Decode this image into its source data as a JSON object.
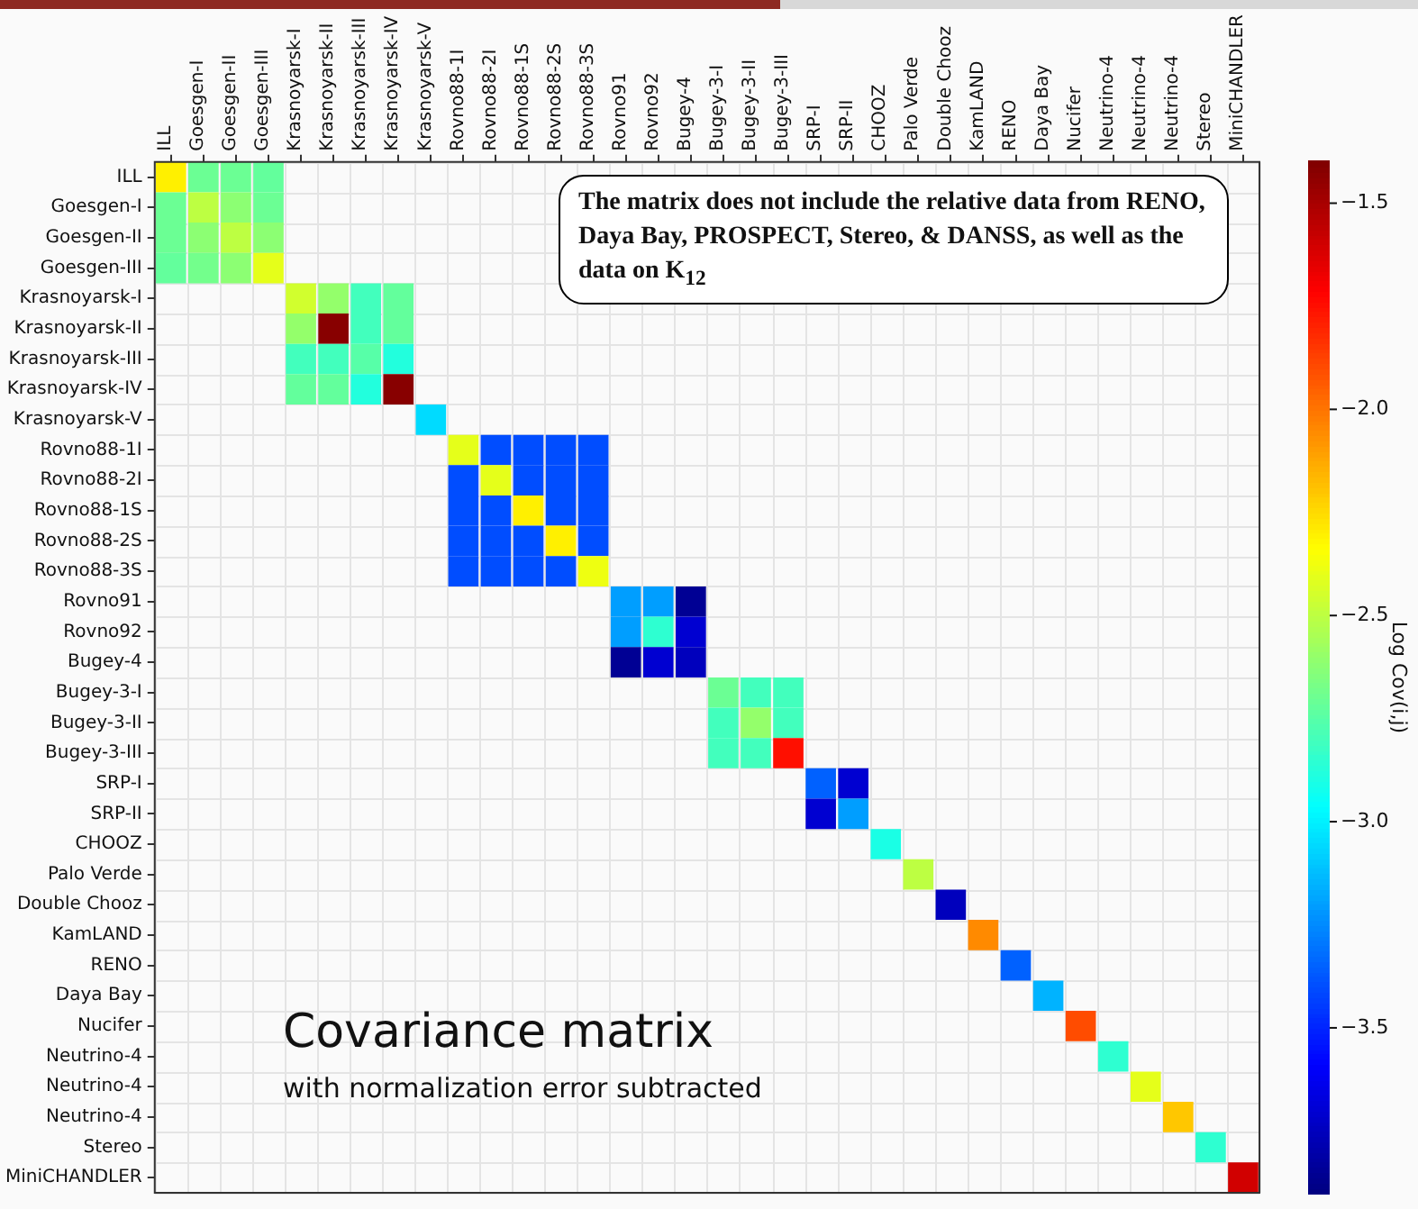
{
  "chart_data": {
    "type": "heatmap",
    "title": "Covariance matrix",
    "subtitle": "with normalization error subtracted",
    "categories": [
      "ILL",
      "Goesgen-I",
      "Goesgen-II",
      "Goesgen-III",
      "Krasnoyarsk-I",
      "Krasnoyarsk-II",
      "Krasnoyarsk-III",
      "Krasnoyarsk-IV",
      "Krasnoyarsk-V",
      "Rovno88-1I",
      "Rovno88-2I",
      "Rovno88-1S",
      "Rovno88-2S",
      "Rovno88-3S",
      "Rovno91",
      "Rovno92",
      "Bugey-4",
      "Bugey-3-I",
      "Bugey-3-II",
      "Bugey-3-III",
      "SRP-I",
      "SRP-II",
      "CHOOZ",
      "Palo Verde",
      "Double Chooz",
      "KamLAND",
      "RENO",
      "Daya Bay",
      "Nucifer",
      "Neutrino-4",
      "Neutrino-4",
      "Neutrino-4",
      "Stereo",
      "MiniCHANDLER"
    ],
    "y_categories": [
      "ILL",
      "Goesgen-I",
      "Goesgen-II",
      "Goesgen-III",
      "Krasnoyarsk-I",
      "Krasnoyarsk-II",
      "Krasnoyarsk-III",
      "Krasnoyarsk-IV",
      "Krasnoyarsk-V",
      "Rovno88-1I",
      "Rovno88-2I",
      "Rovno88-1S",
      "Rovno88-2S",
      "Rovno88-3S",
      "Rovno91",
      "Rovno92",
      "Bugey-4",
      "Bugey-3-I",
      "Bugey-3-II",
      "Bugey-3-III",
      "SRP-I",
      "SRP-II",
      "CHOOZ",
      "Palo Verde",
      "Double Chooz",
      "KamLAND",
      "RENO",
      "Daya Bay",
      "Nucifer",
      "Neutrino-4",
      "Neutrino-4",
      "Neutrino-4",
      "Stereo",
      "MiniCHANDLER"
    ],
    "cells": [
      [
        -2.3,
        -2.7,
        -2.7,
        -2.72,
        null,
        null,
        null,
        null,
        null,
        null,
        null,
        null,
        null,
        null,
        null,
        null,
        null,
        null,
        null,
        null,
        null,
        null,
        null,
        null,
        null,
        null,
        null,
        null,
        null,
        null,
        null,
        null,
        null,
        null
      ],
      [
        -2.7,
        -2.5,
        -2.62,
        -2.7,
        null,
        null,
        null,
        null,
        null,
        null,
        null,
        null,
        null,
        null,
        null,
        null,
        null,
        null,
        null,
        null,
        null,
        null,
        null,
        null,
        null,
        null,
        null,
        null,
        null,
        null,
        null,
        null,
        null,
        null
      ],
      [
        -2.7,
        -2.62,
        -2.5,
        -2.62,
        null,
        null,
        null,
        null,
        null,
        null,
        null,
        null,
        null,
        null,
        null,
        null,
        null,
        null,
        null,
        null,
        null,
        null,
        null,
        null,
        null,
        null,
        null,
        null,
        null,
        null,
        null,
        null,
        null,
        null
      ],
      [
        -2.72,
        -2.68,
        -2.62,
        -2.4,
        null,
        null,
        null,
        null,
        null,
        null,
        null,
        null,
        null,
        null,
        null,
        null,
        null,
        null,
        null,
        null,
        null,
        null,
        null,
        null,
        null,
        null,
        null,
        null,
        null,
        null,
        null,
        null,
        null,
        null
      ],
      [
        null,
        null,
        null,
        null,
        -2.45,
        -2.6,
        -2.8,
        -2.72,
        null,
        null,
        null,
        null,
        null,
        null,
        null,
        null,
        null,
        null,
        null,
        null,
        null,
        null,
        null,
        null,
        null,
        null,
        null,
        null,
        null,
        null,
        null,
        null,
        null,
        null
      ],
      [
        null,
        null,
        null,
        null,
        -2.6,
        -1.42,
        -2.8,
        -2.72,
        null,
        null,
        null,
        null,
        null,
        null,
        null,
        null,
        null,
        null,
        null,
        null,
        null,
        null,
        null,
        null,
        null,
        null,
        null,
        null,
        null,
        null,
        null,
        null,
        null,
        null
      ],
      [
        null,
        null,
        null,
        null,
        -2.8,
        -2.8,
        -2.75,
        -2.88,
        null,
        null,
        null,
        null,
        null,
        null,
        null,
        null,
        null,
        null,
        null,
        null,
        null,
        null,
        null,
        null,
        null,
        null,
        null,
        null,
        null,
        null,
        null,
        null,
        null,
        null
      ],
      [
        null,
        null,
        null,
        null,
        -2.72,
        -2.72,
        -2.88,
        -1.42,
        null,
        null,
        null,
        null,
        null,
        null,
        null,
        null,
        null,
        null,
        null,
        null,
        null,
        null,
        null,
        null,
        null,
        null,
        null,
        null,
        null,
        null,
        null,
        null,
        null,
        null
      ],
      [
        null,
        null,
        null,
        null,
        null,
        null,
        null,
        null,
        -3.05,
        null,
        null,
        null,
        null,
        null,
        null,
        null,
        null,
        null,
        null,
        null,
        null,
        null,
        null,
        null,
        null,
        null,
        null,
        null,
        null,
        null,
        null,
        null,
        null,
        null
      ],
      [
        null,
        null,
        null,
        null,
        null,
        null,
        null,
        null,
        null,
        -2.4,
        -3.4,
        -3.4,
        -3.4,
        -3.4,
        null,
        null,
        null,
        null,
        null,
        null,
        null,
        null,
        null,
        null,
        null,
        null,
        null,
        null,
        null,
        null,
        null,
        null,
        null,
        null
      ],
      [
        null,
        null,
        null,
        null,
        null,
        null,
        null,
        null,
        null,
        -3.4,
        -2.4,
        -3.4,
        -3.4,
        -3.4,
        null,
        null,
        null,
        null,
        null,
        null,
        null,
        null,
        null,
        null,
        null,
        null,
        null,
        null,
        null,
        null,
        null,
        null,
        null,
        null
      ],
      [
        null,
        null,
        null,
        null,
        null,
        null,
        null,
        null,
        null,
        -3.4,
        -3.4,
        -2.3,
        -3.4,
        -3.4,
        null,
        null,
        null,
        null,
        null,
        null,
        null,
        null,
        null,
        null,
        null,
        null,
        null,
        null,
        null,
        null,
        null,
        null,
        null,
        null
      ],
      [
        null,
        null,
        null,
        null,
        null,
        null,
        null,
        null,
        null,
        -3.4,
        -3.4,
        -3.4,
        -2.3,
        -3.4,
        null,
        null,
        null,
        null,
        null,
        null,
        null,
        null,
        null,
        null,
        null,
        null,
        null,
        null,
        null,
        null,
        null,
        null,
        null,
        null
      ],
      [
        null,
        null,
        null,
        null,
        null,
        null,
        null,
        null,
        null,
        -3.4,
        -3.4,
        -3.4,
        -3.4,
        -2.38,
        null,
        null,
        null,
        null,
        null,
        null,
        null,
        null,
        null,
        null,
        null,
        null,
        null,
        null,
        null,
        null,
        null,
        null,
        null,
        null
      ],
      [
        null,
        null,
        null,
        null,
        null,
        null,
        null,
        null,
        null,
        null,
        null,
        null,
        null,
        null,
        -3.2,
        -3.2,
        -3.85,
        null,
        null,
        null,
        null,
        null,
        null,
        null,
        null,
        null,
        null,
        null,
        null,
        null,
        null,
        null,
        null,
        null
      ],
      [
        null,
        null,
        null,
        null,
        null,
        null,
        null,
        null,
        null,
        null,
        null,
        null,
        null,
        null,
        -3.2,
        -2.85,
        -3.7,
        null,
        null,
        null,
        null,
        null,
        null,
        null,
        null,
        null,
        null,
        null,
        null,
        null,
        null,
        null,
        null,
        null
      ],
      [
        null,
        null,
        null,
        null,
        null,
        null,
        null,
        null,
        null,
        null,
        null,
        null,
        null,
        null,
        -3.85,
        -3.7,
        -3.75,
        null,
        null,
        null,
        null,
        null,
        null,
        null,
        null,
        null,
        null,
        null,
        null,
        null,
        null,
        null,
        null,
        null
      ],
      [
        null,
        null,
        null,
        null,
        null,
        null,
        null,
        null,
        null,
        null,
        null,
        null,
        null,
        null,
        null,
        null,
        null,
        -2.7,
        -2.8,
        -2.8,
        null,
        null,
        null,
        null,
        null,
        null,
        null,
        null,
        null,
        null,
        null,
        null,
        null,
        null
      ],
      [
        null,
        null,
        null,
        null,
        null,
        null,
        null,
        null,
        null,
        null,
        null,
        null,
        null,
        null,
        null,
        null,
        null,
        -2.8,
        -2.6,
        -2.8,
        null,
        null,
        null,
        null,
        null,
        null,
        null,
        null,
        null,
        null,
        null,
        null,
        null,
        null
      ],
      [
        null,
        null,
        null,
        null,
        null,
        null,
        null,
        null,
        null,
        null,
        null,
        null,
        null,
        null,
        null,
        null,
        null,
        -2.8,
        -2.8,
        -1.75,
        null,
        null,
        null,
        null,
        null,
        null,
        null,
        null,
        null,
        null,
        null,
        null,
        null,
        null
      ],
      [
        null,
        null,
        null,
        null,
        null,
        null,
        null,
        null,
        null,
        null,
        null,
        null,
        null,
        null,
        null,
        null,
        null,
        null,
        null,
        null,
        -3.35,
        -3.7,
        null,
        null,
        null,
        null,
        null,
        null,
        null,
        null,
        null,
        null,
        null,
        null
      ],
      [
        null,
        null,
        null,
        null,
        null,
        null,
        null,
        null,
        null,
        null,
        null,
        null,
        null,
        null,
        null,
        null,
        null,
        null,
        null,
        null,
        -3.7,
        -3.2,
        null,
        null,
        null,
        null,
        null,
        null,
        null,
        null,
        null,
        null,
        null,
        null
      ],
      [
        null,
        null,
        null,
        null,
        null,
        null,
        null,
        null,
        null,
        null,
        null,
        null,
        null,
        null,
        null,
        null,
        null,
        null,
        null,
        null,
        null,
        null,
        -2.9,
        null,
        null,
        null,
        null,
        null,
        null,
        null,
        null,
        null,
        null,
        null
      ],
      [
        null,
        null,
        null,
        null,
        null,
        null,
        null,
        null,
        null,
        null,
        null,
        null,
        null,
        null,
        null,
        null,
        null,
        null,
        null,
        null,
        null,
        null,
        null,
        -2.5,
        null,
        null,
        null,
        null,
        null,
        null,
        null,
        null,
        null,
        null
      ],
      [
        null,
        null,
        null,
        null,
        null,
        null,
        null,
        null,
        null,
        null,
        null,
        null,
        null,
        null,
        null,
        null,
        null,
        null,
        null,
        null,
        null,
        null,
        null,
        null,
        -3.75,
        null,
        null,
        null,
        null,
        null,
        null,
        null,
        null,
        null
      ],
      [
        null,
        null,
        null,
        null,
        null,
        null,
        null,
        null,
        null,
        null,
        null,
        null,
        null,
        null,
        null,
        null,
        null,
        null,
        null,
        null,
        null,
        null,
        null,
        null,
        null,
        -2.05,
        null,
        null,
        null,
        null,
        null,
        null,
        null,
        null
      ],
      [
        null,
        null,
        null,
        null,
        null,
        null,
        null,
        null,
        null,
        null,
        null,
        null,
        null,
        null,
        null,
        null,
        null,
        null,
        null,
        null,
        null,
        null,
        null,
        null,
        null,
        null,
        -3.35,
        null,
        null,
        null,
        null,
        null,
        null,
        null
      ],
      [
        null,
        null,
        null,
        null,
        null,
        null,
        null,
        null,
        null,
        null,
        null,
        null,
        null,
        null,
        null,
        null,
        null,
        null,
        null,
        null,
        null,
        null,
        null,
        null,
        null,
        null,
        null,
        -3.15,
        null,
        null,
        null,
        null,
        null,
        null
      ],
      [
        null,
        null,
        null,
        null,
        null,
        null,
        null,
        null,
        null,
        null,
        null,
        null,
        null,
        null,
        null,
        null,
        null,
        null,
        null,
        null,
        null,
        null,
        null,
        null,
        null,
        null,
        null,
        null,
        -1.9,
        null,
        null,
        null,
        null,
        null
      ],
      [
        null,
        null,
        null,
        null,
        null,
        null,
        null,
        null,
        null,
        null,
        null,
        null,
        null,
        null,
        null,
        null,
        null,
        null,
        null,
        null,
        null,
        null,
        null,
        null,
        null,
        null,
        null,
        null,
        null,
        -2.85,
        null,
        null,
        null,
        null
      ],
      [
        null,
        null,
        null,
        null,
        null,
        null,
        null,
        null,
        null,
        null,
        null,
        null,
        null,
        null,
        null,
        null,
        null,
        null,
        null,
        null,
        null,
        null,
        null,
        null,
        null,
        null,
        null,
        null,
        null,
        null,
        -2.4,
        null,
        null,
        null
      ],
      [
        null,
        null,
        null,
        null,
        null,
        null,
        null,
        null,
        null,
        null,
        null,
        null,
        null,
        null,
        null,
        null,
        null,
        null,
        null,
        null,
        null,
        null,
        null,
        null,
        null,
        null,
        null,
        null,
        null,
        null,
        null,
        -2.2,
        null,
        null
      ],
      [
        null,
        null,
        null,
        null,
        null,
        null,
        null,
        null,
        null,
        null,
        null,
        null,
        null,
        null,
        null,
        null,
        null,
        null,
        null,
        null,
        null,
        null,
        null,
        null,
        null,
        null,
        null,
        null,
        null,
        null,
        null,
        null,
        -2.85,
        null
      ],
      [
        null,
        null,
        null,
        null,
        null,
        null,
        null,
        null,
        null,
        null,
        null,
        null,
        null,
        null,
        null,
        null,
        null,
        null,
        null,
        null,
        null,
        null,
        null,
        null,
        null,
        null,
        null,
        null,
        null,
        null,
        null,
        null,
        null,
        -1.6
      ]
    ],
    "clim": [
      -3.9,
      -1.4
    ],
    "cticks": [
      {
        "value": -1.5,
        "label": "−1.5"
      },
      {
        "value": -2,
        "label": "−2.0"
      },
      {
        "value": -2.5,
        "label": "−2.5"
      },
      {
        "value": -3,
        "label": "−3.0"
      },
      {
        "value": -3.5,
        "label": "−3.5"
      }
    ],
    "clabel": "Log Cov(i,j)",
    "grid": true,
    "annotations": [
      "The matrix does not include the relative data from RENO, Daya Bay, PROSPECT, Stereo, & DANSS, as well as the data on K$_{12}$"
    ]
  }
}
